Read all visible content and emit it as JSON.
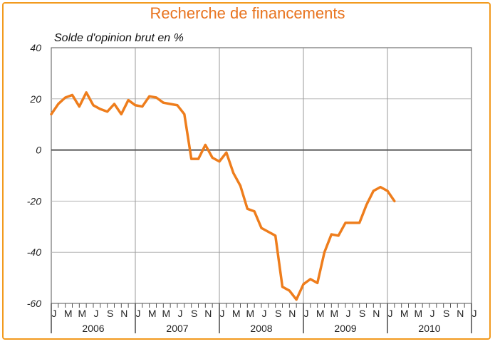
{
  "chart_data": {
    "type": "line",
    "title": "Recherche de financements",
    "ylabel": "Solde d'opinion brut en %",
    "ylim": [
      -60,
      40
    ],
    "yticks": [
      "40",
      "20",
      "0",
      "-20",
      "-40",
      "-60"
    ],
    "ytick_values": [
      40,
      20,
      0,
      -20,
      -40,
      -60
    ],
    "month_labels": [
      "J",
      "M",
      "M",
      "J",
      "S",
      "N",
      "J",
      "M",
      "M",
      "J",
      "S",
      "N",
      "J",
      "M",
      "M",
      "J",
      "S",
      "N",
      "J",
      "M",
      "M",
      "J",
      "S",
      "N",
      "J",
      "M",
      "M",
      "J",
      "S",
      "N",
      "J"
    ],
    "years": [
      "2006",
      "2007",
      "2008",
      "2009",
      "2010"
    ],
    "grid": true,
    "line_color": "#ee7d1c",
    "series": [
      {
        "values": [
          14,
          18,
          20.5,
          21.5,
          17,
          22.5,
          17.5,
          16,
          15,
          18,
          14,
          19.5,
          17.5,
          17,
          21,
          20.5,
          18.5,
          18,
          17.5,
          14,
          -3.5,
          -3.5,
          2,
          -3,
          -4.5,
          -1,
          -9,
          -14,
          -23,
          -24,
          -30.5,
          -32,
          -33.5,
          -53.5,
          -55,
          -58.5,
          -52.5,
          -50.5,
          -52,
          -40,
          -33,
          -33.5,
          -28.5,
          -28.5,
          -28.5,
          -21.5,
          -16,
          -14.5,
          -16,
          -20
        ]
      }
    ]
  }
}
